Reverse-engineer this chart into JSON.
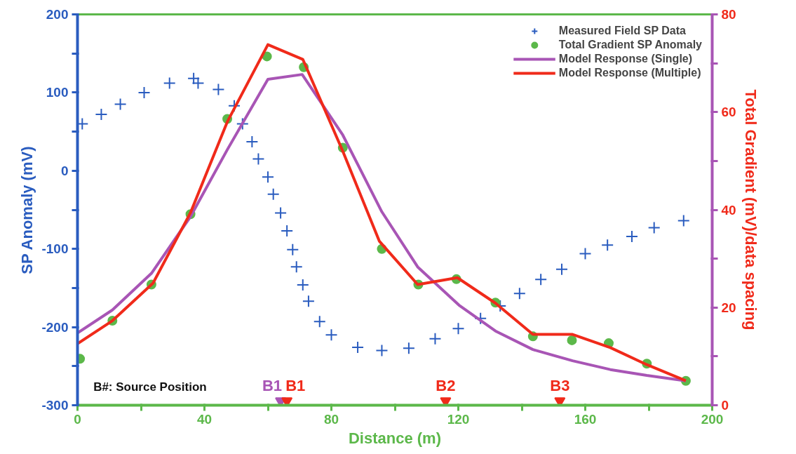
{
  "chart_data": {
    "type": "line",
    "xlabel": "Distance (m)",
    "ylabel": "SP Anomaly (mV)",
    "y2label": "Total Gradient (mV)/data spacing",
    "xlim": [
      0,
      200
    ],
    "xticks": [
      0,
      {
        "value": 20,
        "label": null
      },
      40,
      {
        "value": 60,
        "label": null
      },
      80,
      {
        "value": 100,
        "label": null
      },
      120,
      {
        "value": 140,
        "label": null
      },
      160,
      {
        "value": 180,
        "label": null
      },
      200
    ],
    "ylim": [
      -300,
      200
    ],
    "yticks": [
      -300,
      {
        "value": -250,
        "label": null
      },
      -200,
      {
        "value": -150,
        "label": null
      },
      -100,
      {
        "value": -50,
        "label": null
      },
      0,
      {
        "value": 50,
        "label": null
      },
      100,
      {
        "value": 150,
        "label": null
      },
      200
    ],
    "y2lim": [
      0,
      80
    ],
    "y2ticks": [
      0,
      {
        "value": 10,
        "label": null
      },
      20,
      {
        "value": 30,
        "label": null
      },
      40,
      {
        "value": 50,
        "label": null
      },
      60,
      {
        "value": 70,
        "label": null
      },
      80
    ],
    "grid": false,
    "legend": "top right",
    "series": [
      {
        "name": "Measured Field SP Data",
        "type": "scatter",
        "marker": "cross",
        "color": "#2a5cbf",
        "x": [
          1.5,
          7.5,
          13.5,
          21,
          29,
          36.6,
          38,
          44.4,
          49.4,
          52,
          55,
          57,
          60,
          61.7,
          64,
          66,
          67.8,
          69,
          71,
          72.8,
          76.3,
          80,
          88.3,
          95.9,
          104.4,
          112.7,
          120,
          127,
          133.2,
          139.3,
          146,
          152.6,
          160,
          167,
          174.7,
          181.7,
          191
        ],
        "values": [
          60,
          72,
          85,
          100,
          112,
          118,
          112,
          104,
          83,
          60,
          37,
          15,
          -8,
          -30,
          -54,
          -77,
          -101,
          -123,
          -146,
          -167,
          -193,
          -210,
          -226,
          -230,
          -227,
          -215,
          -202,
          -189,
          -173,
          -157,
          -139,
          -126,
          -106,
          -95,
          -84,
          -73,
          -64
        ]
      },
      {
        "name": "Total Gradient SP Anomaly",
        "type": "scatter",
        "marker": "circle",
        "axis": "y2",
        "color": "#5cb84a",
        "x": [
          0.8,
          11,
          23.3,
          35.6,
          47.2,
          59.7,
          71.3,
          83.6,
          95.9,
          107.4,
          119.4,
          131.7,
          143.5,
          155.8,
          167.4,
          179.4,
          191.7
        ],
        "values": [
          9.5,
          17.3,
          24.7,
          39.1,
          58.6,
          71.4,
          69.2,
          52.7,
          32,
          24.7,
          25.8,
          21,
          14.1,
          13.3,
          12.7,
          8.5,
          5
        ]
      },
      {
        "name": "Model Response (Single)",
        "type": "line",
        "axis": "y2",
        "color": "#a855b5",
        "x": [
          0,
          11,
          23.3,
          35.6,
          47.2,
          60,
          70.8,
          83.6,
          95.9,
          107.2,
          120.2,
          131.7,
          143.5,
          156,
          167.9,
          179.4,
          191.7
        ],
        "values": [
          14.8,
          19.5,
          27,
          38.6,
          52.3,
          66.7,
          67.7,
          55.3,
          39.6,
          28.3,
          20.5,
          15.2,
          11.4,
          9.1,
          7.3,
          6.1,
          5
        ]
      },
      {
        "name": "Model Response (Multiple)",
        "type": "line",
        "axis": "y2",
        "color": "#f02a1a",
        "x": [
          0,
          11,
          23.8,
          35.6,
          47.2,
          60,
          71,
          83.6,
          95.1,
          107.2,
          119.7,
          131.7,
          143.5,
          156,
          167.9,
          179.4,
          191.7
        ],
        "values": [
          12.6,
          17.3,
          25,
          39.4,
          58,
          73.8,
          70.8,
          52,
          33.6,
          24.7,
          26.1,
          20.9,
          14.5,
          14.5,
          11.8,
          8.3,
          5
        ]
      },
      {
        "type": "scatter",
        "marker": "triangle",
        "axis": "y2",
        "color": "#a855b5",
        "x": [
          64
        ],
        "values": [
          0.9
        ]
      },
      {
        "type": "scatter",
        "marker": "triangle",
        "axis": "y2",
        "color": "#f02a1a",
        "x": [
          66,
          116,
          152
        ],
        "values": [
          0.9,
          0.9,
          0.9
        ]
      }
    ],
    "annotations": [
      "B#: Source Position",
      "B1",
      "B1",
      "B2",
      "B3"
    ]
  }
}
